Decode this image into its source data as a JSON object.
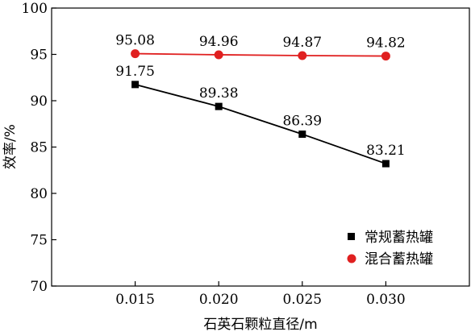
{
  "chart_data": {
    "type": "line",
    "title": "",
    "xlabel": "石英石颗粒直径/m",
    "ylabel": "效率/%",
    "x": [
      0.015,
      0.02,
      0.025,
      0.03
    ],
    "x_tick_labels": [
      "0.015",
      "0.020",
      "0.025",
      "0.030"
    ],
    "xlim": [
      0.01,
      0.035
    ],
    "ylim": [
      70,
      100
    ],
    "y_ticks": [
      70,
      75,
      80,
      85,
      90,
      95,
      100
    ],
    "grid": false,
    "legend_position": "bottom-right",
    "series": [
      {
        "name": "常规蓄热罐",
        "values": [
          91.75,
          89.38,
          86.39,
          83.21
        ],
        "labels": [
          "91.75",
          "89.38",
          "86.39",
          "83.21"
        ],
        "marker": "square",
        "color": "#000000"
      },
      {
        "name": "混合蓄热罐",
        "values": [
          95.08,
          94.96,
          94.87,
          94.82
        ],
        "labels": [
          "95.08",
          "94.96",
          "94.87",
          "94.82"
        ],
        "marker": "circle",
        "color": "#e02020"
      }
    ]
  }
}
